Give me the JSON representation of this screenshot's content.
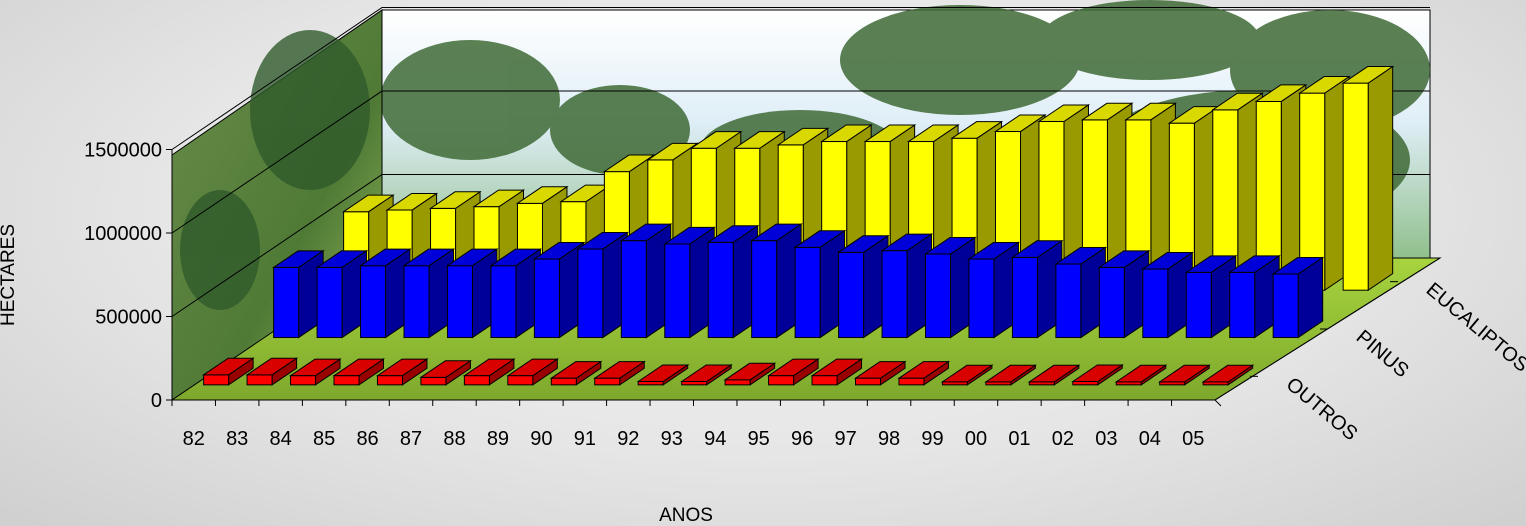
{
  "chart_data": {
    "type": "bar",
    "subtype": "3d-column",
    "categories": [
      "82",
      "83",
      "84",
      "85",
      "86",
      "87",
      "88",
      "89",
      "90",
      "91",
      "92",
      "93",
      "94",
      "95",
      "96",
      "97",
      "98",
      "99",
      "00",
      "01",
      "02",
      "03",
      "04",
      "05"
    ],
    "series": [
      {
        "name": "OUTROS",
        "color": "#ff0000",
        "values": [
          60000,
          60000,
          55000,
          55000,
          55000,
          45000,
          55000,
          55000,
          40000,
          40000,
          20000,
          20000,
          30000,
          55000,
          55000,
          40000,
          40000,
          10000,
          10000,
          10000,
          20000,
          10000,
          10000,
          10000
        ]
      },
      {
        "name": "PINUS",
        "color": "#0000ff",
        "values": [
          420000,
          420000,
          430000,
          430000,
          430000,
          430000,
          470000,
          530000,
          580000,
          560000,
          570000,
          580000,
          540000,
          510000,
          520000,
          500000,
          470000,
          480000,
          440000,
          420000,
          410000,
          390000,
          390000,
          380000
        ]
      },
      {
        "name": "EUCALIPTOS",
        "color": "#ffff00",
        "values": [
          470000,
          480000,
          490000,
          500000,
          520000,
          530000,
          710000,
          780000,
          850000,
          850000,
          870000,
          890000,
          890000,
          890000,
          910000,
          950000,
          1010000,
          1020000,
          1020000,
          1000000,
          1080000,
          1130000,
          1180000,
          1240000
        ]
      }
    ],
    "xlabel": "ANOS",
    "ylabel": "HECTARES",
    "yticks": [
      "0",
      "500000",
      "1000000",
      "1500000"
    ],
    "ylim": [
      0,
      1500000
    ],
    "legend": "depth-axis-labels",
    "grid": true
  }
}
